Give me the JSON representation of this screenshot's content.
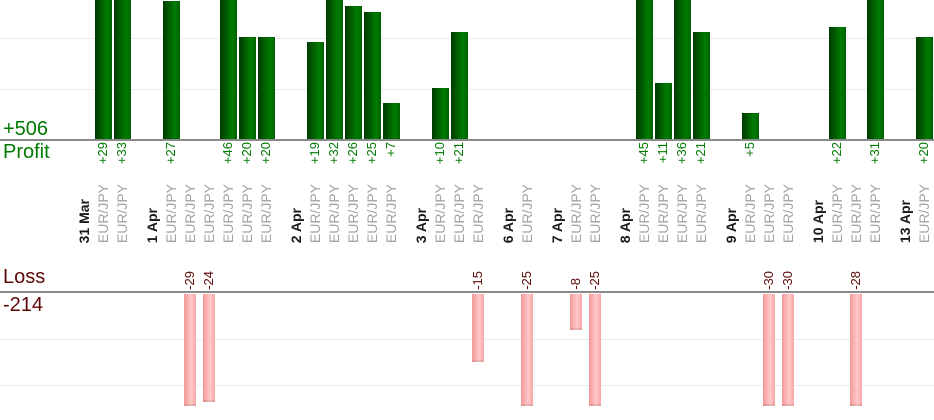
{
  "chart_data": {
    "type": "bar",
    "orientation": "vertical-dual-panel",
    "panels": {
      "profit": {
        "total_label": "+506",
        "axis_label": "Profit",
        "total": 506,
        "text_color": "#007a00",
        "visible_range": [
          0,
          27
        ],
        "gridline_step": 10
      },
      "loss": {
        "axis_label": "Loss",
        "total_label": "-214",
        "total": -214,
        "text_color": "#5e0808",
        "visible_range": [
          -25,
          0
        ],
        "gridline_step": 10
      }
    },
    "groups": [
      {
        "date": "31 Mar",
        "trades": [
          {
            "symbol": "EUR/JPY",
            "value": 29
          },
          {
            "symbol": "EUR/JPY",
            "value": 33
          }
        ]
      },
      {
        "date": "1 Apr",
        "trades": [
          {
            "symbol": "EUR/JPY",
            "value": 27
          },
          {
            "symbol": "EUR/JPY",
            "value": -29
          },
          {
            "symbol": "EUR/JPY",
            "value": -24
          },
          {
            "symbol": "EUR/JPY",
            "value": 46
          },
          {
            "symbol": "EUR/JPY",
            "value": 20
          },
          {
            "symbol": "EUR/JPY",
            "value": 20
          }
        ]
      },
      {
        "date": "2 Apr",
        "trades": [
          {
            "symbol": "EUR/JPY",
            "value": 19
          },
          {
            "symbol": "EUR/JPY",
            "value": 32
          },
          {
            "symbol": "EUR/JPY",
            "value": 26
          },
          {
            "symbol": "EUR/JPY",
            "value": 25
          },
          {
            "symbol": "EUR/JPY",
            "value": 7
          }
        ]
      },
      {
        "date": "3 Apr",
        "trades": [
          {
            "symbol": "EUR/JPY",
            "value": 10
          },
          {
            "symbol": "EUR/JPY",
            "value": 21
          },
          {
            "symbol": "EUR/JPY",
            "value": -15
          }
        ]
      },
      {
        "date": "6 Apr",
        "trades": [
          {
            "symbol": "EUR/JPY",
            "value": -25
          }
        ]
      },
      {
        "date": "7 Apr",
        "trades": [
          {
            "symbol": "EUR/JPY",
            "value": -8
          },
          {
            "symbol": "EUR/JPY",
            "value": -25
          }
        ]
      },
      {
        "date": "8 Apr",
        "trades": [
          {
            "symbol": "EUR/JPY",
            "value": 45
          },
          {
            "symbol": "EUR/JPY",
            "value": 11
          },
          {
            "symbol": "EUR/JPY",
            "value": 36
          },
          {
            "symbol": "EUR/JPY",
            "value": 21
          }
        ]
      },
      {
        "date": "9 Apr",
        "trades": [
          {
            "symbol": "EUR/JPY",
            "value": 5
          },
          {
            "symbol": "EUR/JPY",
            "value": -30
          },
          {
            "symbol": "EUR/JPY",
            "value": -30
          }
        ]
      },
      {
        "date": "10 Apr",
        "trades": [
          {
            "symbol": "EUR/JPY",
            "value": 22
          },
          {
            "symbol": "EUR/JPY",
            "value": -28
          },
          {
            "symbol": "EUR/JPY",
            "value": 31
          }
        ]
      },
      {
        "date": "13 Apr",
        "trades": [
          {
            "symbol": "EUR/JPY",
            "value": 20
          }
        ]
      }
    ],
    "colors": {
      "profit_bar_gradient": [
        "#003a00",
        "#007c00",
        "#006000"
      ],
      "loss_bar_gradient": [
        "#f59898",
        "#ffc8c8",
        "#f8a6a6"
      ],
      "date_text": "#1a1a1a",
      "symbol_text": "#a3a3a3",
      "axis_line": "#8a8a8a",
      "gridline": "#ebebeb",
      "background": "#ffffff"
    }
  }
}
